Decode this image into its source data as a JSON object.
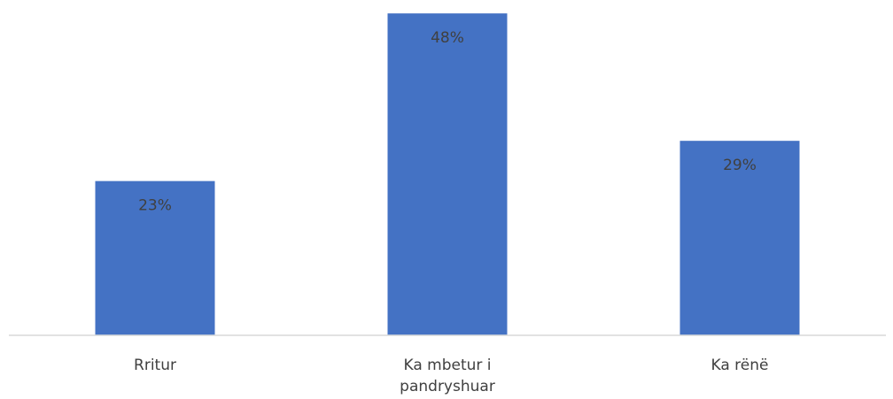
{
  "chart_data": {
    "type": "bar",
    "categories": [
      "Rritur",
      "Ka mbetur i pandryshuar",
      "Ka rënë"
    ],
    "category_label_lines": [
      [
        "Rritur"
      ],
      [
        "Ka mbetur i",
        "pandryshuar"
      ],
      [
        "Ka rënë"
      ]
    ],
    "values": [
      23,
      48,
      29
    ],
    "data_labels": [
      "23%",
      "48%",
      "29%"
    ],
    "unit": "%",
    "ylim": [
      0,
      50
    ],
    "grid": false,
    "legend": "none",
    "bar_color": "#4472C4",
    "title": "",
    "xlabel": "",
    "ylabel": ""
  }
}
